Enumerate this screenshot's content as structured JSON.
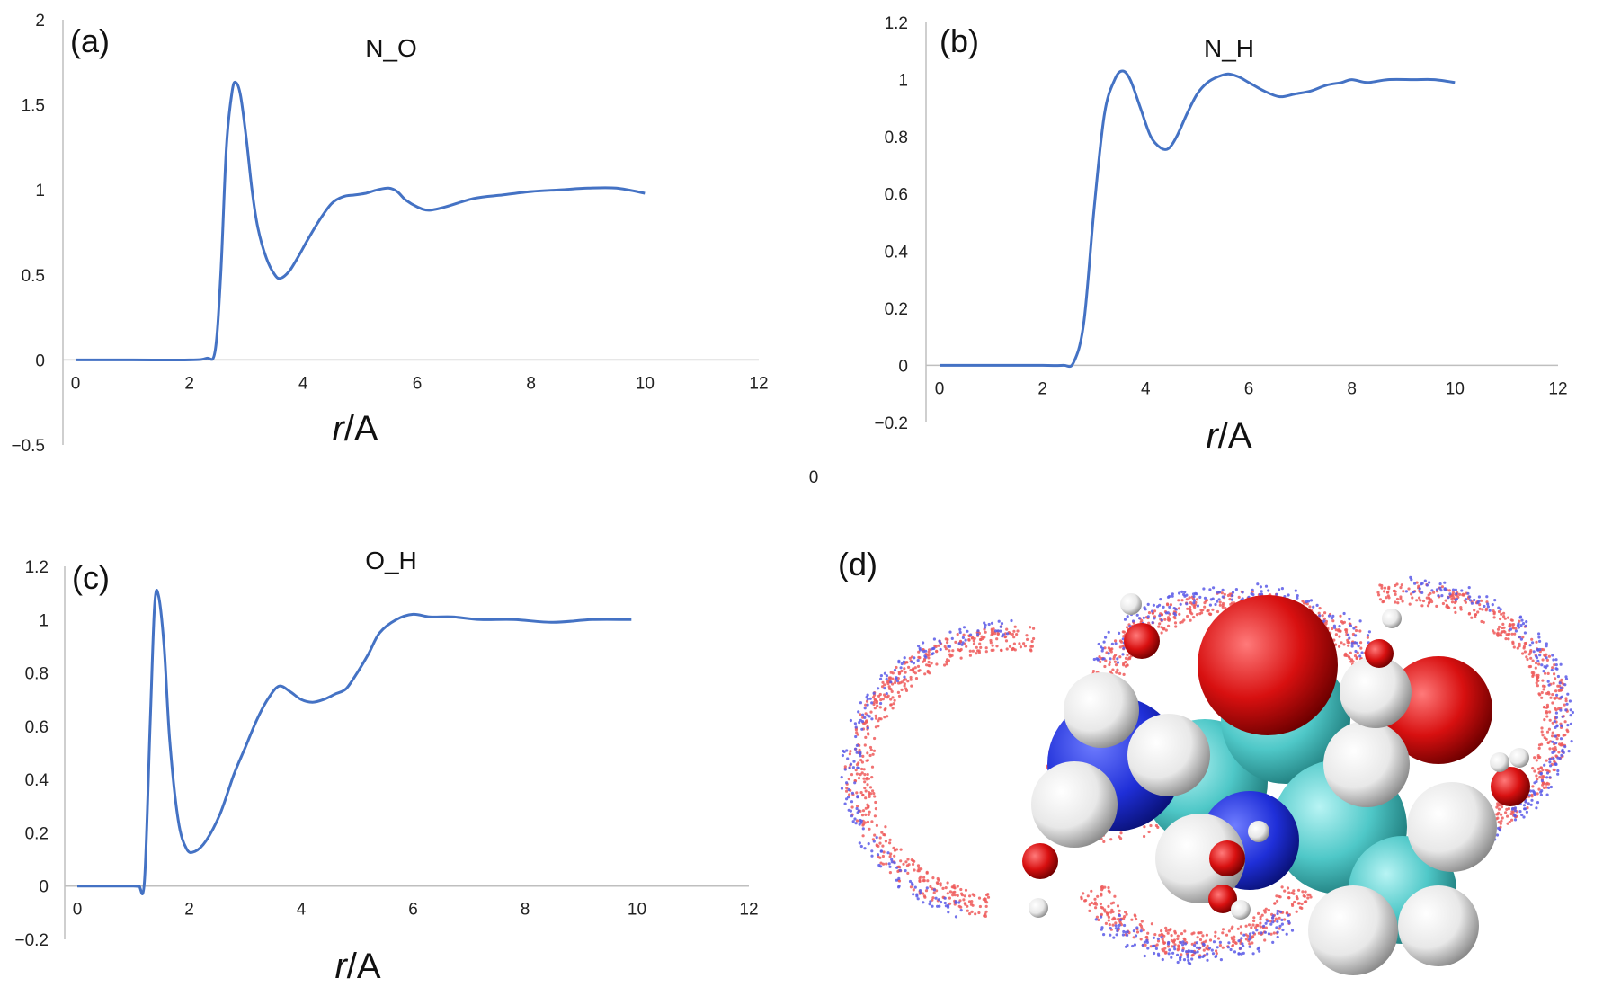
{
  "figure": {
    "stray_label": "0",
    "panel_d_label": "(d)"
  },
  "colors": {
    "line": "#4472c4",
    "axis": "#bfbfbf",
    "nitrogen": "#1f2fd8",
    "oxygen": "#d81010",
    "carbon": "#4fc8c8",
    "hydrogen": "#f0f0f0"
  },
  "chart_data": [
    {
      "type": "line",
      "panel": "(a)",
      "title": "N_O",
      "xlabel_italic": "r",
      "xlabel_rest": "/A",
      "xlim": [
        0,
        12
      ],
      "ylim": [
        -0.5,
        2
      ],
      "xticks": [
        0,
        2,
        4,
        6,
        8,
        10,
        12
      ],
      "yticks": [
        -0.5,
        0,
        0.5,
        1,
        1.5,
        2
      ],
      "ytick_labels": [
        "−0.5",
        "0",
        "0.5",
        "1",
        "1.5",
        "2"
      ],
      "grid": false,
      "x": [
        0,
        1,
        2,
        2.3,
        2.45,
        2.55,
        2.65,
        2.75,
        2.82,
        2.9,
        3.0,
        3.1,
        3.2,
        3.35,
        3.5,
        3.6,
        3.75,
        3.9,
        4.1,
        4.3,
        4.5,
        4.7,
        4.9,
        5.1,
        5.3,
        5.5,
        5.65,
        5.8,
        6.0,
        6.2,
        6.5,
        7.0,
        7.5,
        8.0,
        8.5,
        9.0,
        9.5,
        10.0
      ],
      "y": [
        0,
        0,
        0,
        0.01,
        0.05,
        0.5,
        1.25,
        1.58,
        1.63,
        1.55,
        1.3,
        1.0,
        0.78,
        0.6,
        0.5,
        0.48,
        0.52,
        0.6,
        0.72,
        0.83,
        0.92,
        0.96,
        0.97,
        0.98,
        1.0,
        1.01,
        0.99,
        0.94,
        0.9,
        0.88,
        0.9,
        0.95,
        0.97,
        0.99,
        1.0,
        1.01,
        1.01,
        0.98
      ]
    },
    {
      "type": "line",
      "panel": "(b)",
      "title": "N_H",
      "xlabel_italic": "r",
      "xlabel_rest": "/A",
      "xlim": [
        0,
        12
      ],
      "ylim": [
        -0.2,
        1.2
      ],
      "xticks": [
        0,
        2,
        4,
        6,
        8,
        10,
        12
      ],
      "yticks": [
        -0.2,
        0,
        0.2,
        0.4,
        0.6,
        0.8,
        1,
        1.2
      ],
      "ytick_labels": [
        "−0.2",
        "0",
        "0.2",
        "0.4",
        "0.6",
        "0.8",
        "1",
        "1.2"
      ],
      "grid": false,
      "x": [
        0,
        1,
        2,
        2.4,
        2.6,
        2.8,
        3.0,
        3.2,
        3.4,
        3.55,
        3.7,
        3.9,
        4.1,
        4.3,
        4.45,
        4.6,
        4.8,
        5.0,
        5.2,
        5.4,
        5.6,
        5.8,
        6.0,
        6.3,
        6.6,
        6.9,
        7.2,
        7.5,
        7.8,
        8.0,
        8.3,
        8.7,
        9.2,
        9.6,
        10.0
      ],
      "y": [
        0,
        0,
        0,
        0,
        0.01,
        0.15,
        0.55,
        0.88,
        1.0,
        1.03,
        1.0,
        0.9,
        0.8,
        0.76,
        0.76,
        0.8,
        0.88,
        0.95,
        0.99,
        1.01,
        1.02,
        1.01,
        0.99,
        0.96,
        0.94,
        0.95,
        0.96,
        0.98,
        0.99,
        1.0,
        0.99,
        1.0,
        1.0,
        1.0,
        0.99
      ]
    },
    {
      "type": "line",
      "panel": "(c)",
      "title": "O_H",
      "xlabel_italic": "r",
      "xlabel_rest": "/A",
      "xlim": [
        0,
        12
      ],
      "ylim": [
        -0.2,
        1.2
      ],
      "xticks": [
        0,
        2,
        4,
        6,
        8,
        10,
        12
      ],
      "yticks": [
        -0.2,
        0,
        0.2,
        0.4,
        0.6,
        0.8,
        1,
        1.2
      ],
      "ytick_labels": [
        "−0.2",
        "0",
        "0.2",
        "0.4",
        "0.6",
        "0.8",
        "1",
        "1.2"
      ],
      "grid": false,
      "x": [
        0,
        0.5,
        1.0,
        1.1,
        1.2,
        1.3,
        1.38,
        1.45,
        1.55,
        1.65,
        1.8,
        1.95,
        2.1,
        2.3,
        2.55,
        2.8,
        3.0,
        3.2,
        3.4,
        3.6,
        3.8,
        4.0,
        4.2,
        4.4,
        4.6,
        4.8,
        5.0,
        5.2,
        5.4,
        5.7,
        6.0,
        6.3,
        6.7,
        7.2,
        7.8,
        8.5,
        9.2,
        9.9
      ],
      "y": [
        0,
        0,
        0,
        0,
        0.02,
        0.6,
        1.05,
        1.09,
        0.9,
        0.55,
        0.25,
        0.14,
        0.13,
        0.17,
        0.27,
        0.42,
        0.52,
        0.62,
        0.7,
        0.75,
        0.73,
        0.7,
        0.69,
        0.7,
        0.72,
        0.74,
        0.8,
        0.87,
        0.95,
        1.0,
        1.02,
        1.01,
        1.01,
        1.0,
        1.0,
        0.99,
        1.0,
        1.0
      ]
    }
  ]
}
